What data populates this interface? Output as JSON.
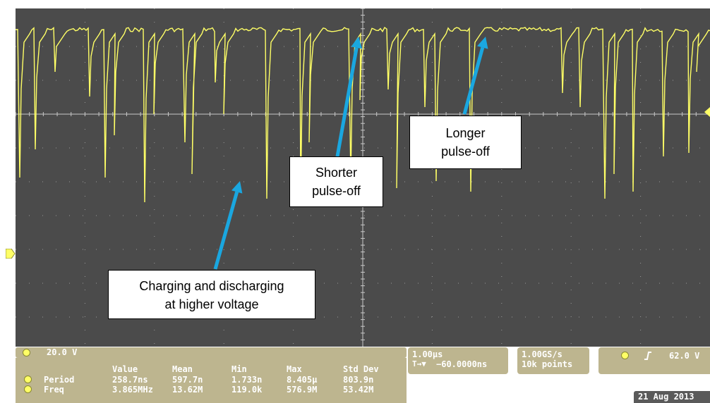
{
  "channel": {
    "scale": "20.0 V",
    "marker": "1"
  },
  "timebase": {
    "scale": "1.00µs",
    "trigger_position": "−60.0000ns"
  },
  "acquisition": {
    "sample_rate": "1.00GS/s",
    "record_length": "10k points"
  },
  "trigger": {
    "level": "62.0 V",
    "slope_icon": "rising-edge-icon"
  },
  "measurements": {
    "headers": [
      "Value",
      "Mean",
      "Min",
      "Max",
      "Std Dev"
    ],
    "rows": [
      {
        "label": "Period",
        "values": [
          "258.7ns",
          "597.7n",
          "1.733n",
          "8.405µ",
          "803.9n"
        ]
      },
      {
        "label": "Freq",
        "values": [
          "3.865MHz",
          "13.62M",
          "119.0k",
          "576.9M",
          "53.42M"
        ]
      }
    ]
  },
  "date": "21 Aug 2013",
  "annotations": {
    "shorter": [
      "Shorter",
      "pulse-off"
    ],
    "longer": [
      "Longer",
      "pulse-off"
    ],
    "charging": [
      "Charging and discharging",
      "at higher voltage"
    ]
  },
  "colors": {
    "trace": "#ffff66",
    "screen": "#4b4b4b",
    "panel": "#bdb58f",
    "arrow": "#1aa7e0"
  }
}
